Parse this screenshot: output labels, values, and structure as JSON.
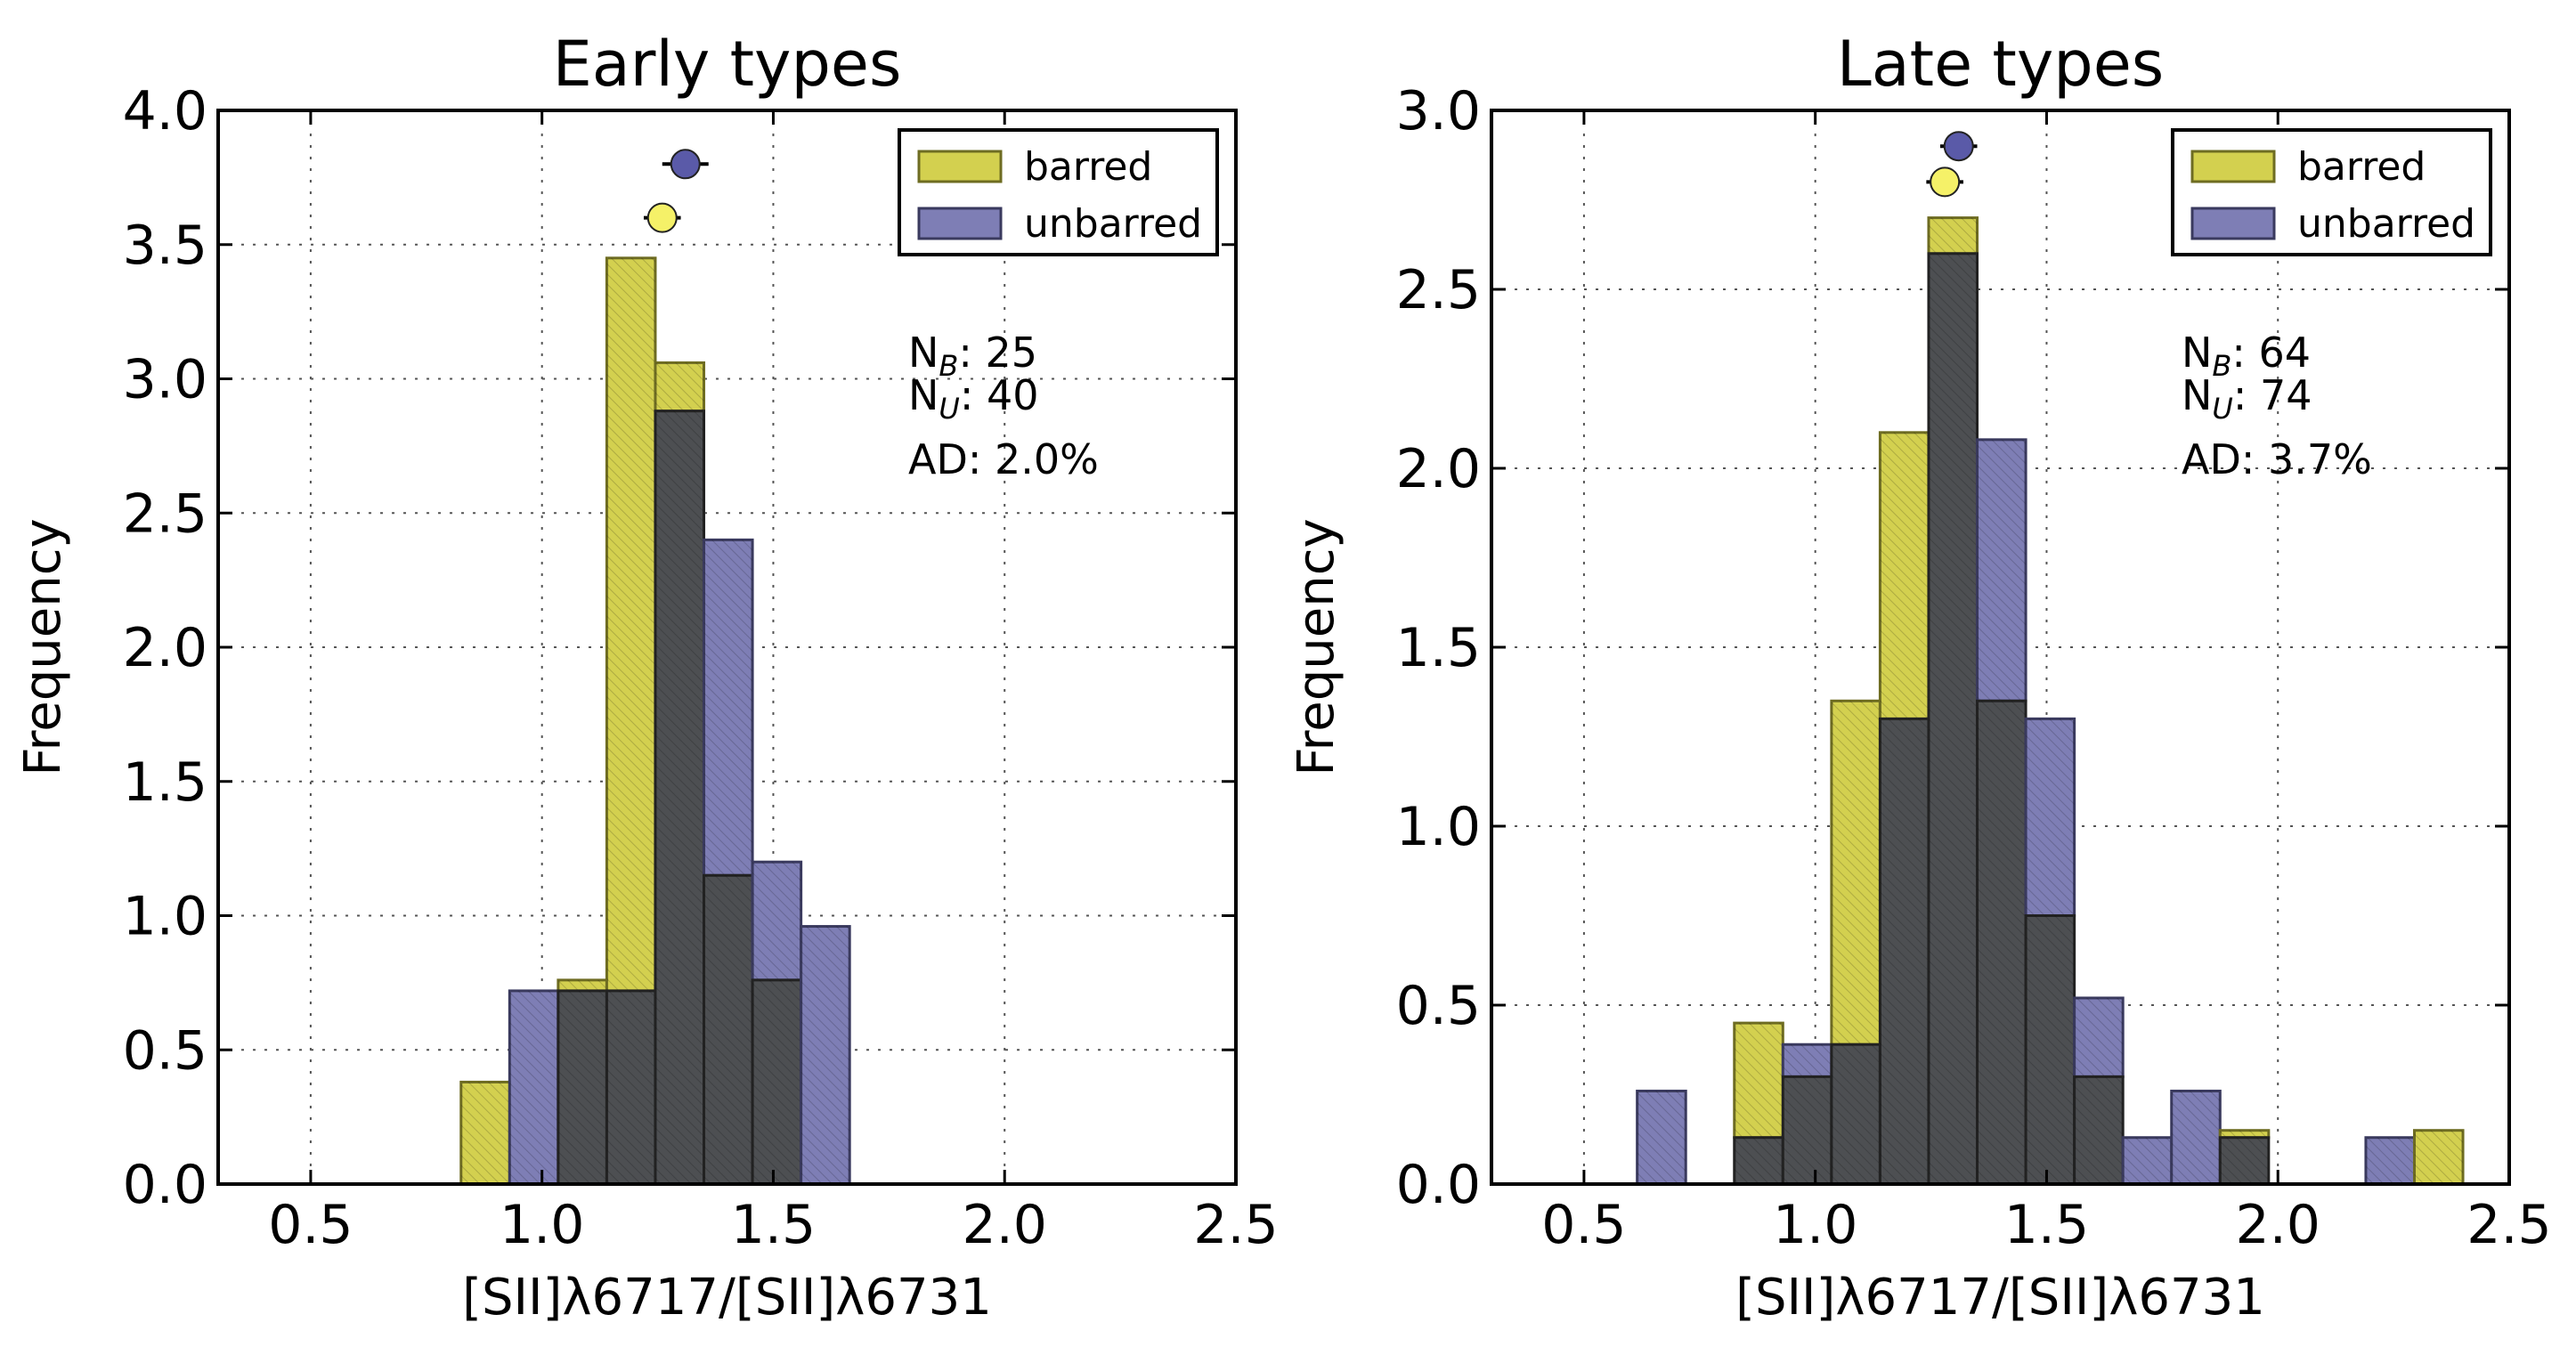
{
  "colors": {
    "barred_fill": "#d3d04f",
    "barred_stroke": "#6e6c22",
    "unbarred_fill": "#7e7eb5",
    "unbarred_stroke": "#3a3a5e",
    "overlap_fill": "#4d4f52",
    "barred_marker": "#f5f168",
    "unbarred_marker": "#5a5aa8"
  },
  "chart_data": [
    {
      "type": "histogram",
      "title": "Early types",
      "xlabel": "[SII]λ6717/[SII]λ6731",
      "ylabel": "Frequency",
      "xlim": [
        0.3,
        2.5
      ],
      "ylim": [
        0,
        4.0
      ],
      "xticks": [
        "0.5",
        "1.0",
        "1.5",
        "2.0",
        "2.5"
      ],
      "yticks": [
        "0.0",
        "0.5",
        "1.0",
        "1.5",
        "2.0",
        "2.5",
        "3.0",
        "3.5",
        "4.0"
      ],
      "grid": true,
      "legend_position": "top-right",
      "bin_edges": [
        0.825,
        0.93,
        1.035,
        1.14,
        1.245,
        1.35,
        1.455,
        1.56,
        1.665
      ],
      "series": [
        {
          "name": "barred",
          "values": [
            0.38,
            0.0,
            0.76,
            3.45,
            3.06,
            1.15,
            0.76,
            0.0
          ]
        },
        {
          "name": "unbarred",
          "values": [
            0.0,
            0.72,
            0.72,
            0.72,
            2.88,
            2.4,
            1.2,
            0.96
          ]
        }
      ],
      "medians": [
        {
          "series": "barred",
          "x": 1.26,
          "y": 3.6,
          "err": 0.04
        },
        {
          "series": "unbarred",
          "x": 1.31,
          "y": 3.8,
          "err": 0.05
        }
      ],
      "stats": {
        "nb": "N",
        "nb_sub": "B",
        "nb_value": ": 25",
        "nu": "N",
        "nu_sub": "U",
        "nu_value": ": 40",
        "ad": "AD: 2.0%"
      }
    },
    {
      "type": "histogram",
      "title": "Late types",
      "xlabel": "[SII]λ6717/[SII]λ6731",
      "ylabel": "Frequency",
      "xlim": [
        0.3,
        2.5
      ],
      "ylim": [
        0,
        3.0
      ],
      "xticks": [
        "0.5",
        "1.0",
        "1.5",
        "2.0",
        "2.5"
      ],
      "yticks": [
        "0.0",
        "0.5",
        "1.0",
        "1.5",
        "2.0",
        "2.5",
        "3.0"
      ],
      "grid": true,
      "legend_position": "top-right",
      "bin_edges": [
        0.615,
        0.72,
        0.825,
        0.93,
        1.035,
        1.14,
        1.245,
        1.35,
        1.455,
        1.56,
        1.665,
        1.77,
        1.875,
        1.98,
        2.085,
        2.19,
        2.295,
        2.4
      ],
      "series": [
        {
          "name": "barred",
          "values": [
            0.0,
            0.0,
            0.45,
            0.3,
            1.35,
            2.1,
            2.7,
            1.35,
            0.75,
            0.3,
            0.0,
            0.0,
            0.15,
            0.0,
            0.0,
            0.0,
            0.15
          ]
        },
        {
          "name": "unbarred",
          "values": [
            0.26,
            0.0,
            0.13,
            0.39,
            0.39,
            1.3,
            2.6,
            2.08,
            1.3,
            0.52,
            0.13,
            0.26,
            0.13,
            0.0,
            0.0,
            0.13,
            0.0
          ]
        }
      ],
      "medians": [
        {
          "series": "barred",
          "x": 1.28,
          "y": 2.8,
          "err": 0.04
        },
        {
          "series": "unbarred",
          "x": 1.31,
          "y": 2.9,
          "err": 0.04
        }
      ],
      "stats": {
        "nb": "N",
        "nb_sub": "B",
        "nb_value": ": 64",
        "nu": "N",
        "nu_sub": "U",
        "nu_value": ": 74",
        "ad": "AD: 3.7%"
      }
    }
  ]
}
